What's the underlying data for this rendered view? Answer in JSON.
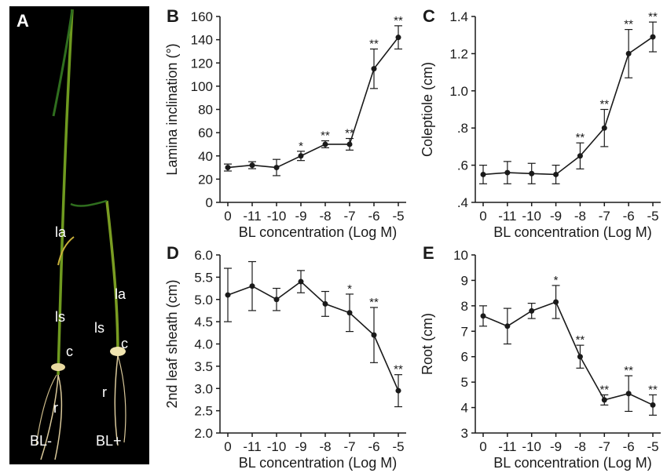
{
  "panel_a": {
    "label": "A",
    "bl_minus": "BL-",
    "bl_plus": "BL+",
    "organ_labels": {
      "la": "la",
      "ls": "ls",
      "c": "c",
      "r": "r"
    }
  },
  "chart_data": [
    {
      "panel": "B",
      "type": "line",
      "ylabel": "Lamina inclination (°)",
      "xlabel": "BL concentration (Log M)",
      "categories": [
        "0",
        "-11",
        "-10",
        "-9",
        "-8",
        "-7",
        "-6",
        "-5"
      ],
      "values": [
        30,
        32,
        30,
        40,
        50,
        50,
        115,
        142
      ],
      "errors": [
        3,
        3,
        7,
        4,
        3,
        5,
        17,
        10
      ],
      "significance": [
        "",
        "",
        "",
        "*",
        "**",
        "**",
        "**",
        "**"
      ],
      "ylim": [
        0,
        160
      ],
      "yticks": [
        "0",
        "20",
        "40",
        "60",
        "80",
        "100",
        "120",
        "140",
        "160"
      ]
    },
    {
      "panel": "C",
      "type": "line",
      "ylabel": "Coleptiole (cm)",
      "xlabel": "BL concentration (Log M)",
      "categories": [
        "0",
        "-11",
        "-10",
        "-9",
        "-8",
        "-7",
        "-6",
        "-5"
      ],
      "values": [
        0.55,
        0.56,
        0.555,
        0.55,
        0.65,
        0.8,
        1.2,
        1.29
      ],
      "errors": [
        0.05,
        0.06,
        0.055,
        0.05,
        0.07,
        0.1,
        0.13,
        0.08
      ],
      "significance": [
        "",
        "",
        "",
        "",
        "**",
        "**",
        "**",
        "**"
      ],
      "ylim": [
        0.4,
        1.4
      ],
      "yticks": [
        ".4",
        ".6",
        ".8",
        "1.0",
        "1.2",
        "1.4"
      ]
    },
    {
      "panel": "D",
      "type": "line",
      "ylabel": "2nd leaf sheath (cm)",
      "xlabel": "BL concentration (Log M)",
      "categories": [
        "0",
        "-11",
        "-10",
        "-9",
        "-8",
        "-7",
        "-6",
        "-5"
      ],
      "values": [
        5.1,
        5.3,
        5.0,
        5.4,
        4.9,
        4.7,
        4.2,
        2.95
      ],
      "errors": [
        0.6,
        0.55,
        0.25,
        0.25,
        0.28,
        0.42,
        0.62,
        0.36
      ],
      "significance": [
        "",
        "",
        "",
        "",
        "",
        "*",
        "**",
        "**"
      ],
      "ylim": [
        2.0,
        6.0
      ],
      "yticks": [
        "2.0",
        "2.5",
        "3.0",
        "3.5",
        "4.0",
        "4.5",
        "5.0",
        "5.5",
        "6.0"
      ]
    },
    {
      "panel": "E",
      "type": "line",
      "ylabel": "Root (cm)",
      "xlabel": "BL concentration (Log M)",
      "categories": [
        "0",
        "-11",
        "-10",
        "-9",
        "-8",
        "-7",
        "-6",
        "-5"
      ],
      "values": [
        7.6,
        7.2,
        7.8,
        8.15,
        6.0,
        4.3,
        4.55,
        4.1
      ],
      "errors": [
        0.4,
        0.7,
        0.3,
        0.65,
        0.45,
        0.2,
        0.7,
        0.4
      ],
      "significance": [
        "",
        "",
        "",
        "*",
        "**",
        "**",
        "**",
        "**"
      ],
      "ylim": [
        3,
        10
      ],
      "yticks": [
        "3",
        "4",
        "5",
        "6",
        "7",
        "8",
        "9",
        "10"
      ]
    }
  ]
}
